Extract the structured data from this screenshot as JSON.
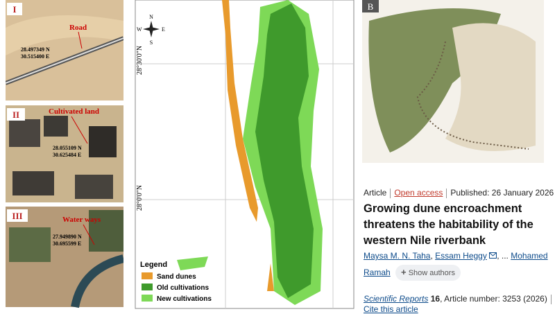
{
  "panels": [
    {
      "numeral": "I",
      "label": "Road",
      "lat": "28.497349 N",
      "lon": "30.515400 E"
    },
    {
      "numeral": "II",
      "label": "Cultivated land",
      "lat": "28.055109 N",
      "lon": "30.625484 E"
    },
    {
      "numeral": "III",
      "label": "Water ways",
      "lat": "27.949890 N",
      "lon": "30.695599 E"
    }
  ],
  "map": {
    "compass": {
      "n": "N",
      "s": "S",
      "e": "E",
      "w": "W"
    },
    "lat_labels": [
      "28°30'0\"N",
      "28°0'0\"N"
    ],
    "legend": {
      "title": "Legend",
      "items": [
        "Sand dunes",
        "Old cultivations",
        "New cultivations"
      ]
    }
  },
  "figure_label": "B",
  "article": {
    "type": "Article",
    "access": "Open access",
    "published": "Published: 26 January 2026",
    "title": "Growing dune encroachment threatens the habitability of the western Nile riverbank",
    "authors": [
      "Maysa M. N. Taha",
      "Essam Heggy",
      "Mohamed Ramah"
    ],
    "ellipsis": "...",
    "show_authors": "Show authors",
    "journal": "Scientific Reports",
    "volume": "16",
    "article_number": ", Article number: 3253 (2026)",
    "cite": "Cite this article"
  }
}
